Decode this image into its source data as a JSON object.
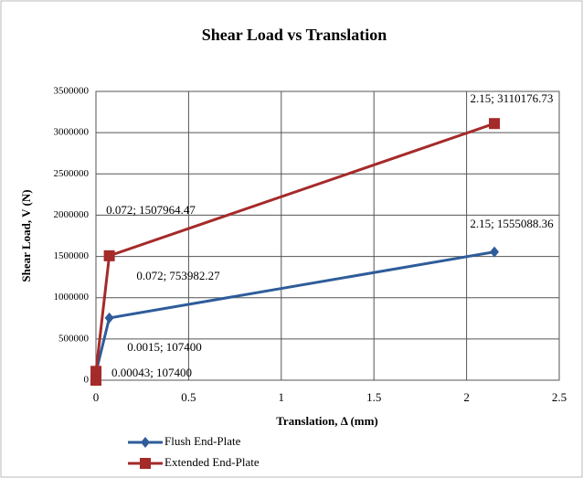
{
  "chart_data": {
    "type": "line",
    "title": "Shear Load vs Translation",
    "xlabel": "Translation, Δ (mm)",
    "ylabel": "Shear Load, V (N)",
    "xlim": [
      0,
      2.5
    ],
    "xticks": [
      0,
      0.5,
      1,
      1.5,
      2,
      2.5
    ],
    "ylim": [
      0,
      3500000
    ],
    "yticks": [
      0,
      500000,
      1000000,
      1500000,
      2000000,
      2500000,
      3000000,
      3500000
    ],
    "grid": true,
    "legend": "bottom-left",
    "series": [
      {
        "name": "Flush End-Plate",
        "color": "#2e5c9a",
        "marker": "diamond",
        "x": [
          0,
          0.0015,
          0.072,
          2.15
        ],
        "values": [
          0,
          107400,
          753982.27,
          1555088.36
        ],
        "value_labels": [
          null,
          "0.0015; 107400",
          "0.072; 753982.27",
          "2.15; 1555088.36"
        ]
      },
      {
        "name": "Extended End-Plate",
        "color": "#a52a2a",
        "marker": "square",
        "x": [
          0,
          0.00043,
          0.072,
          2.15
        ],
        "values": [
          0,
          107400,
          1507964.47,
          3110176.73
        ],
        "value_labels": [
          null,
          "0.00043; 107400",
          "0.072; 1507964.47",
          "2.15; 3110176.73"
        ]
      }
    ]
  }
}
